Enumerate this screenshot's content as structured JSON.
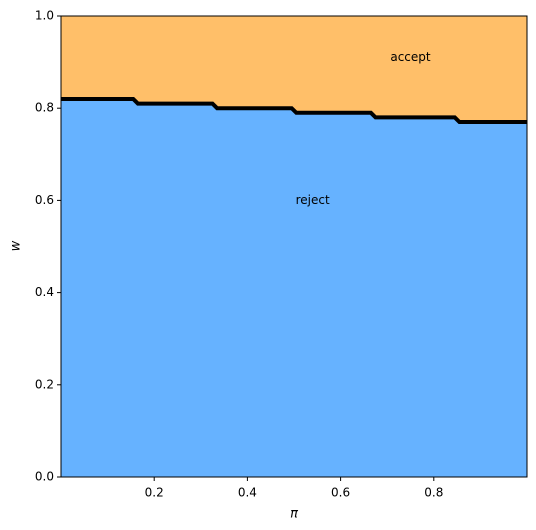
{
  "chart_data": {
    "type": "region",
    "x_label": "π",
    "y_label": "w",
    "x": [
      0,
      0.155,
      0.165,
      0.325,
      0.335,
      0.495,
      0.505,
      0.665,
      0.675,
      0.845,
      0.855,
      1
    ],
    "values": [
      0.82,
      0.82,
      0.81,
      0.81,
      0.8,
      0.8,
      0.79,
      0.79,
      0.78,
      0.78,
      0.77,
      0.77
    ],
    "boundary_color": "#000000",
    "regions": [
      {
        "name": "reject",
        "color": "#66b2ff",
        "side": "below"
      },
      {
        "name": "accept",
        "color": "#ffbf69",
        "side": "above"
      }
    ],
    "xlim": [
      0,
      1
    ],
    "ylim": [
      0,
      1
    ],
    "xticks": [
      0.2,
      0.4,
      0.6,
      0.8
    ],
    "yticks": [
      {
        "value": 0,
        "label": "0.0"
      },
      0.2,
      0.4,
      0.6,
      0.8,
      {
        "value": 1,
        "label": "1.0"
      }
    ]
  }
}
